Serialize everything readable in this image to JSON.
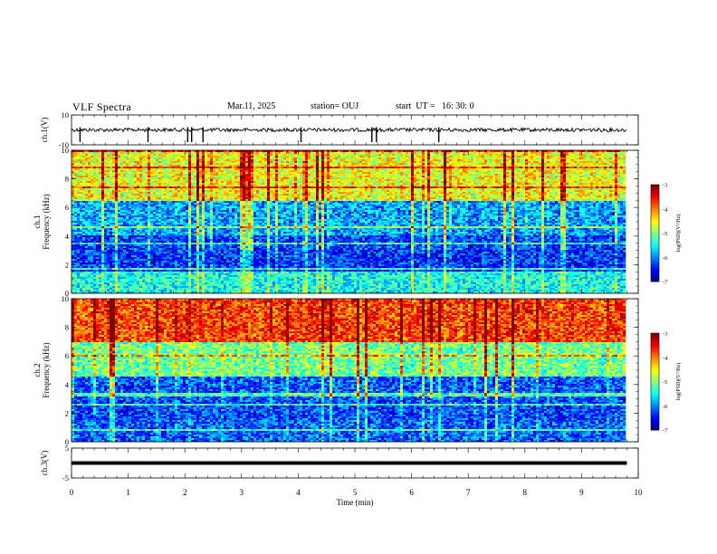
{
  "header": {
    "title": "VLF Spectra",
    "date": "Mar.11, 2025",
    "station": "station= OUJ",
    "start": "start  UT =   16: 30: 0"
  },
  "chart_data": [
    {
      "type": "line",
      "panel": "waveform-ch1",
      "ylabel": "ch.1(V)",
      "yticks": [
        "10",
        "-10"
      ],
      "ylim": [
        -10,
        10
      ],
      "x": [
        0,
        9.8
      ],
      "baseline": 0,
      "spikes_min": [
        0.15,
        1.35,
        2.05,
        2.12,
        2.32,
        4.05,
        5.3,
        5.38,
        6.48
      ]
    },
    {
      "type": "heatmap",
      "panel": "spectrogram-ch1",
      "ylabel": "ch.1\nFrequency (kHz)",
      "yticks": [
        "0",
        "2",
        "4",
        "6",
        "8",
        "10"
      ],
      "ylim": [
        0,
        10
      ],
      "xlim": [
        0,
        9.8
      ],
      "colorbar": {
        "label": "log(PSD)(V²/Hz)",
        "ticks": [
          "-3",
          "-4",
          "-5",
          "-6",
          "-7"
        ],
        "range": [
          -7,
          -3
        ]
      },
      "bands_khz": [
        {
          "from": 0,
          "to": 1.5,
          "level": -5.5
        },
        {
          "from": 1.5,
          "to": 4.0,
          "level": -6.4
        },
        {
          "from": 4.0,
          "to": 6.5,
          "level": -6.0
        },
        {
          "from": 6.5,
          "to": 10,
          "level": -4.7
        }
      ]
    },
    {
      "type": "heatmap",
      "panel": "spectrogram-ch2",
      "ylabel": "ch.2\nFrequency (kHz)",
      "yticks": [
        "0",
        "2",
        "4",
        "6",
        "8",
        "10"
      ],
      "ylim": [
        0,
        10
      ],
      "xlim": [
        0,
        9.8
      ],
      "colorbar": {
        "label": "log(PSD)(V²/Hz)",
        "ticks": [
          "-3",
          "-4",
          "-5",
          "-6",
          "-7"
        ],
        "range": [
          -7,
          -3
        ]
      },
      "bands_khz": [
        {
          "from": 0,
          "to": 1.5,
          "level": -6.2
        },
        {
          "from": 1.5,
          "to": 4.5,
          "level": -6.3
        },
        {
          "from": 4.5,
          "to": 7.0,
          "level": -5.2
        },
        {
          "from": 7.0,
          "to": 10,
          "level": -3.9
        }
      ]
    },
    {
      "type": "line",
      "panel": "waveform-ch3",
      "ylabel": "ch.3(V)",
      "yticks": [
        "5",
        "-5"
      ],
      "ylim": [
        -5,
        5
      ],
      "x": [
        0,
        9.8
      ],
      "value": 0
    }
  ],
  "xaxis": {
    "label": "Time (min)",
    "ticks": [
      "0",
      "1",
      "2",
      "3",
      "4",
      "5",
      "6",
      "7",
      "8",
      "9",
      "10"
    ],
    "xlim": [
      0,
      10
    ]
  }
}
